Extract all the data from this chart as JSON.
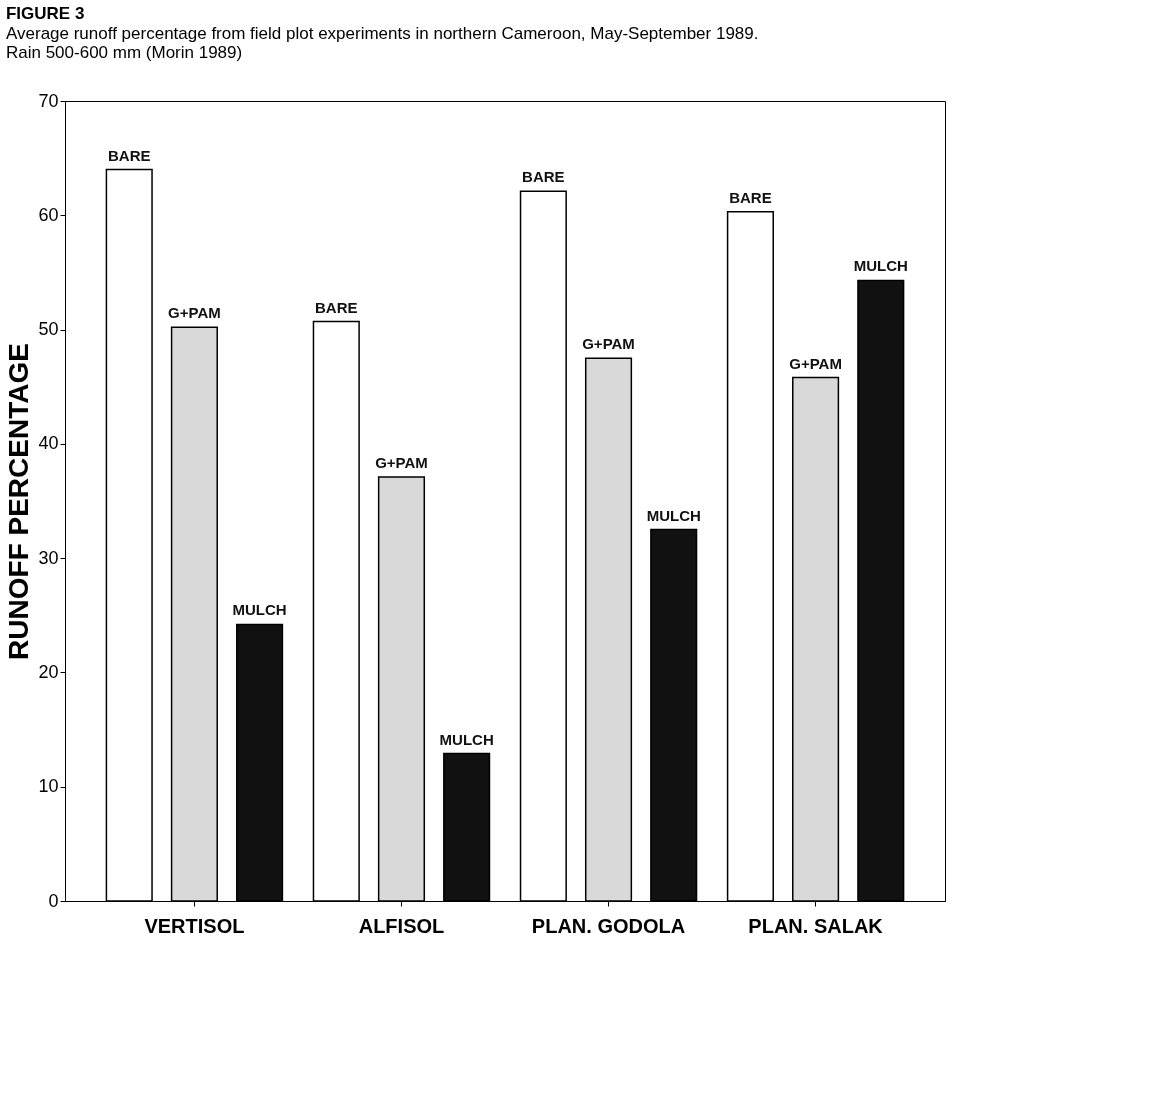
{
  "chart_data": {
    "type": "bar",
    "title": "FIGURE 3",
    "subtitle": "Average runoff percentage from field plot experiments in northern Cameroon, May-September 1989. Rain 500-600 mm (Morin 1989)",
    "ylabel": "RUNOFF PERCENTAGE",
    "categories": [
      "VERTISOL",
      "ALFISOL",
      "PLAN. GODOLA",
      "PLAN. SALAK"
    ],
    "series": [
      {
        "name": "BARE",
        "color": "#ffffff",
        "values": [
          64,
          50.7,
          62.1,
          60.3
        ]
      },
      {
        "name": "G+PAM",
        "color": "#d9d9d9",
        "values": [
          50.2,
          37.1,
          47.5,
          45.8
        ]
      },
      {
        "name": "MULCH",
        "color": "#111111",
        "values": [
          24.2,
          12.9,
          32.5,
          54.3
        ]
      }
    ],
    "ylim": [
      0,
      70
    ],
    "yticks": [
      0,
      10,
      20,
      30,
      40,
      50,
      60,
      70
    ],
    "grid": false,
    "legend": false
  }
}
